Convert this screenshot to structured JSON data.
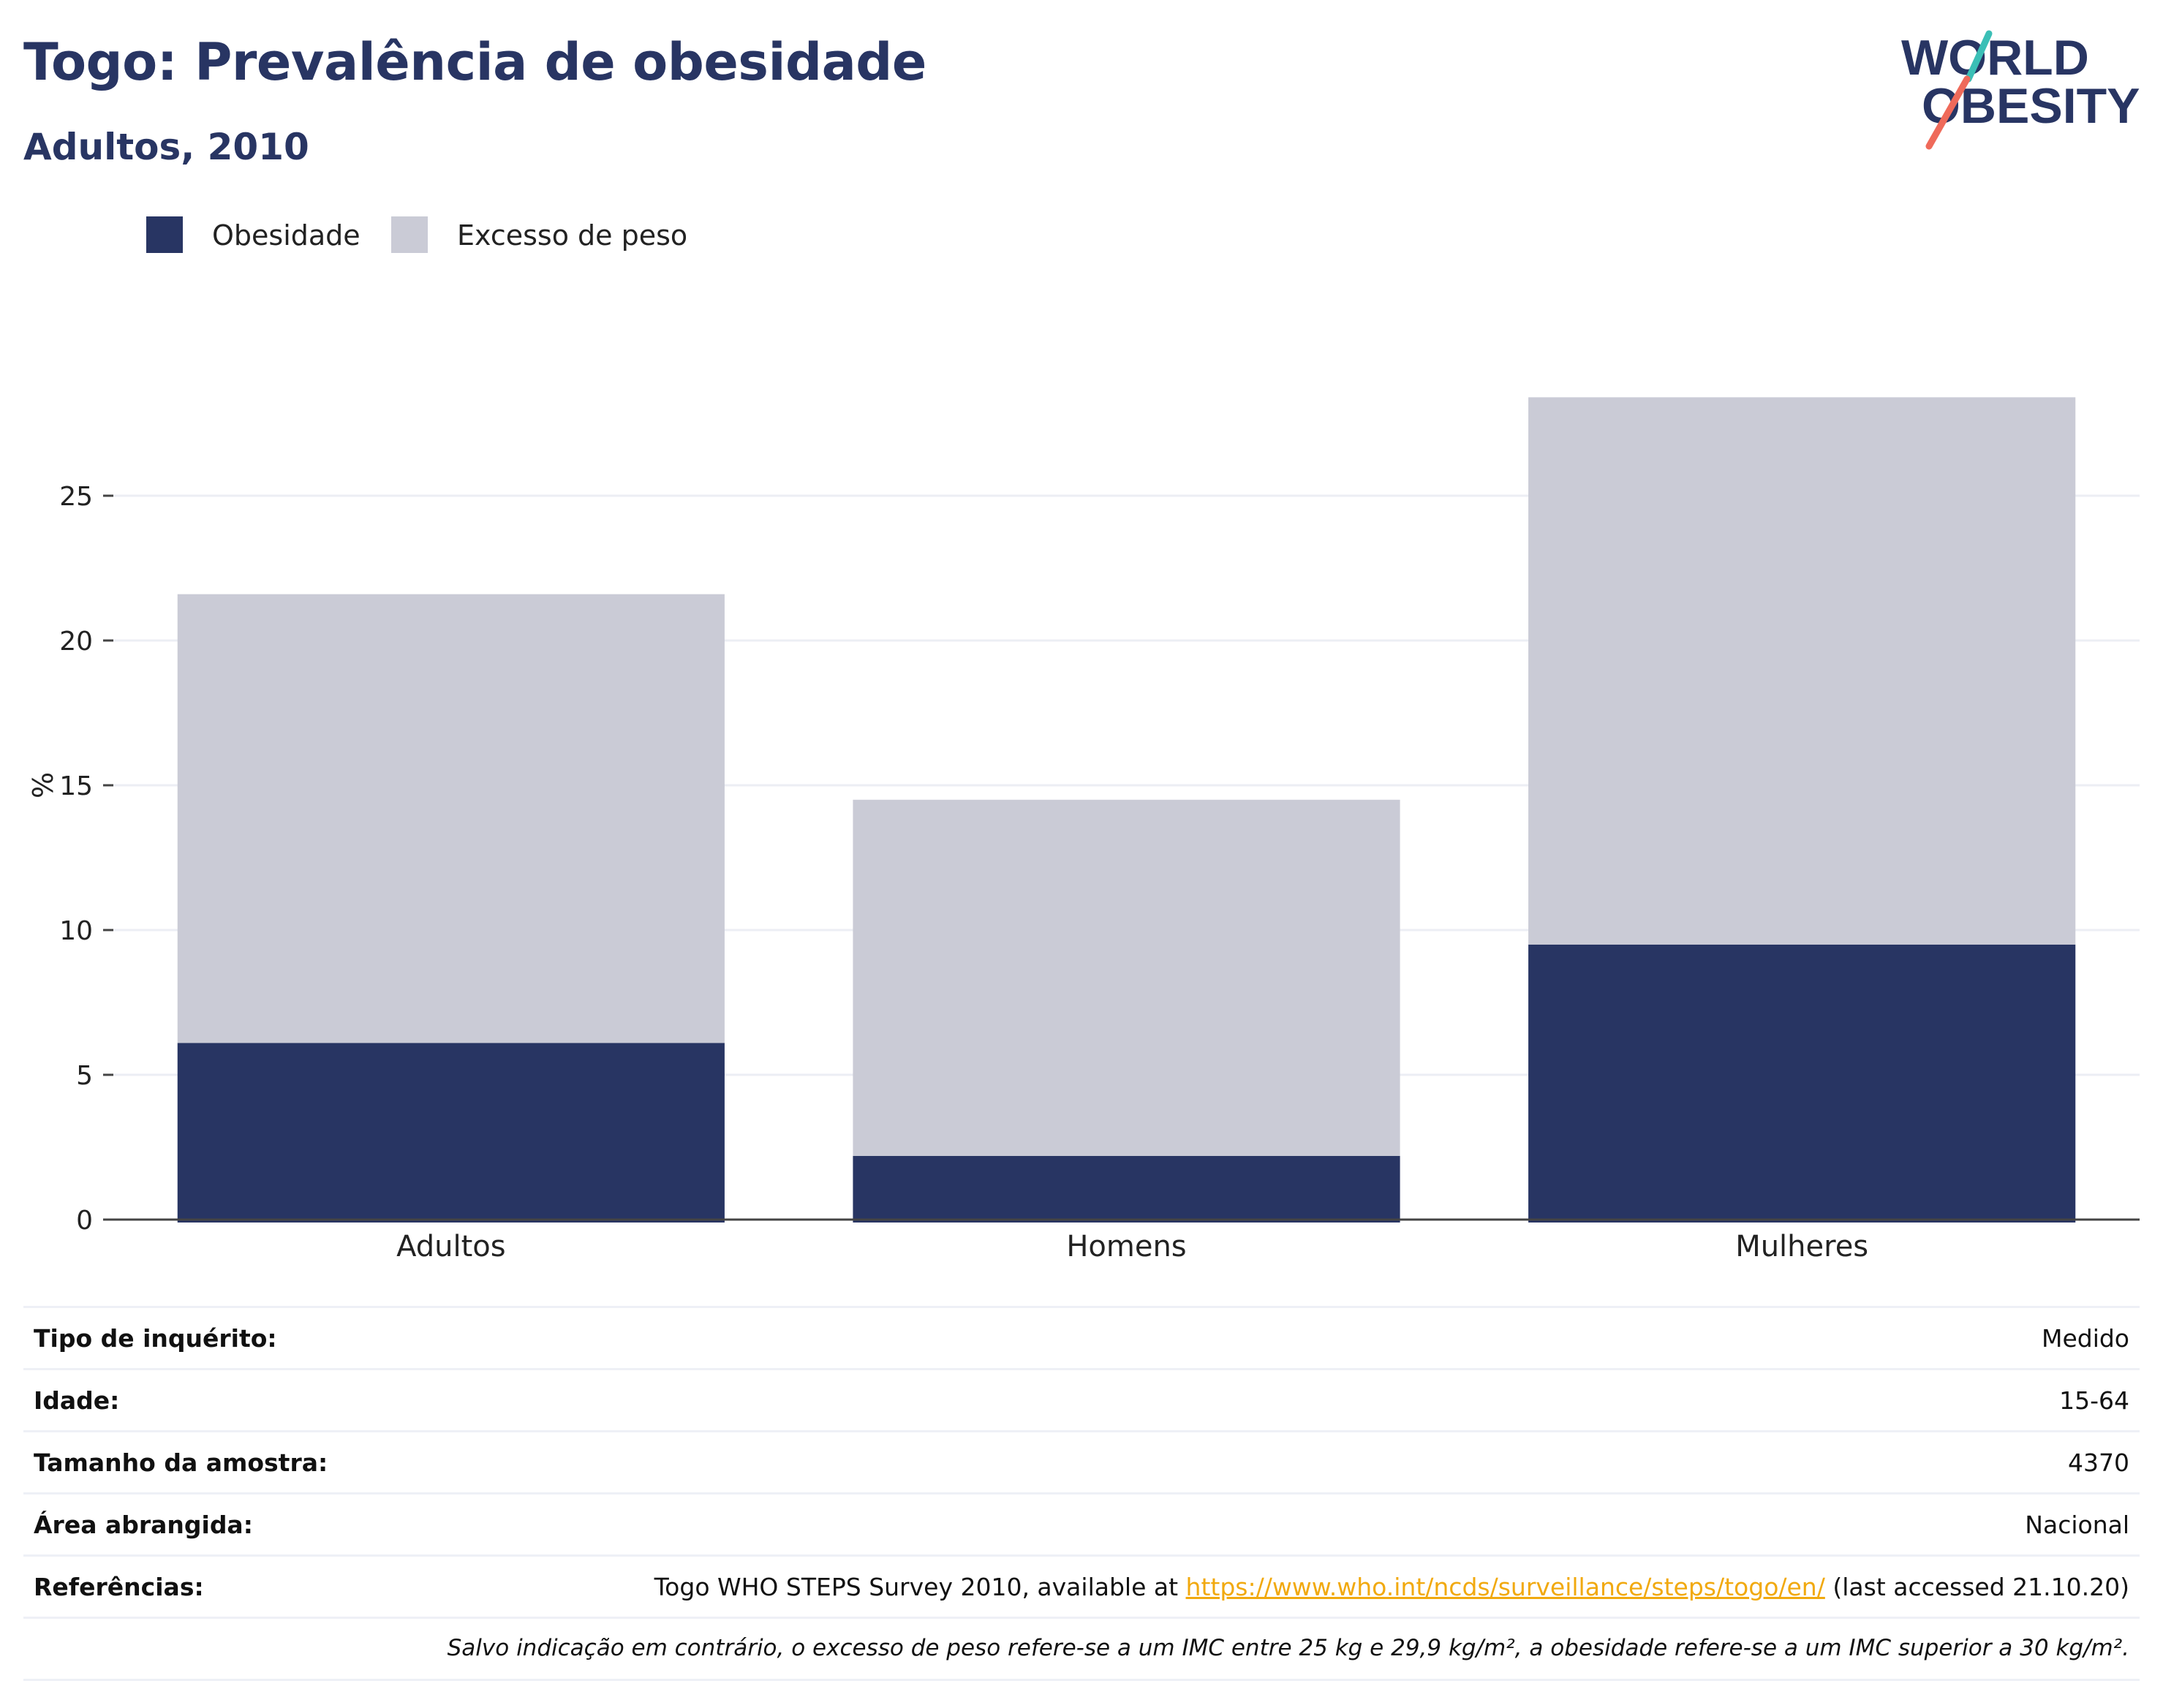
{
  "header": {
    "title": "Togo: Prevalência de obesidade",
    "subtitle": "Adultos, 2010"
  },
  "logo": {
    "line1": "WORLD",
    "line2": "OBESITY"
  },
  "colors": {
    "brand": "#283563",
    "overweight": "#cacbd6",
    "link": "#f1a90f",
    "logo_accent_top": "#3bbfb6",
    "logo_accent_bottom": "#ef6a5a"
  },
  "chart_data": {
    "type": "bar",
    "stacked": true,
    "categories": [
      "Adultos",
      "Homens",
      "Mulheres"
    ],
    "series": [
      {
        "name": "Obesidade",
        "values": [
          6.1,
          2.2,
          9.5
        ],
        "color": "#283563"
      },
      {
        "name": "Excesso de peso",
        "values": [
          15.5,
          12.3,
          18.9
        ],
        "color": "#cacbd6"
      }
    ],
    "ylabel": "%",
    "ylim": [
      0,
      30
    ],
    "yticks": [
      0,
      5,
      10,
      15,
      20,
      25
    ],
    "grid": true,
    "legend_position": "top-left"
  },
  "info": {
    "rows": [
      {
        "label": "Tipo de inquérito:",
        "value": "Medido"
      },
      {
        "label": "Idade:",
        "value": "15-64"
      },
      {
        "label": "Tamanho da amostra:",
        "value": "4370"
      },
      {
        "label": "Área abrangida:",
        "value": "Nacional"
      }
    ],
    "references": {
      "label": "Referências:",
      "prefix": "Togo WHO STEPS Survey 2010, available at ",
      "link": "https://www.who.int/ncds/surveillance/steps/togo/en/",
      "suffix": " (last accessed 21.10.20)"
    },
    "note": "Salvo indicação em contrário, o excesso de peso refere-se a um IMC entre 25 kg e 29,9 kg/m², a obesidade refere-se a um IMC superior a 30 kg/m²."
  }
}
